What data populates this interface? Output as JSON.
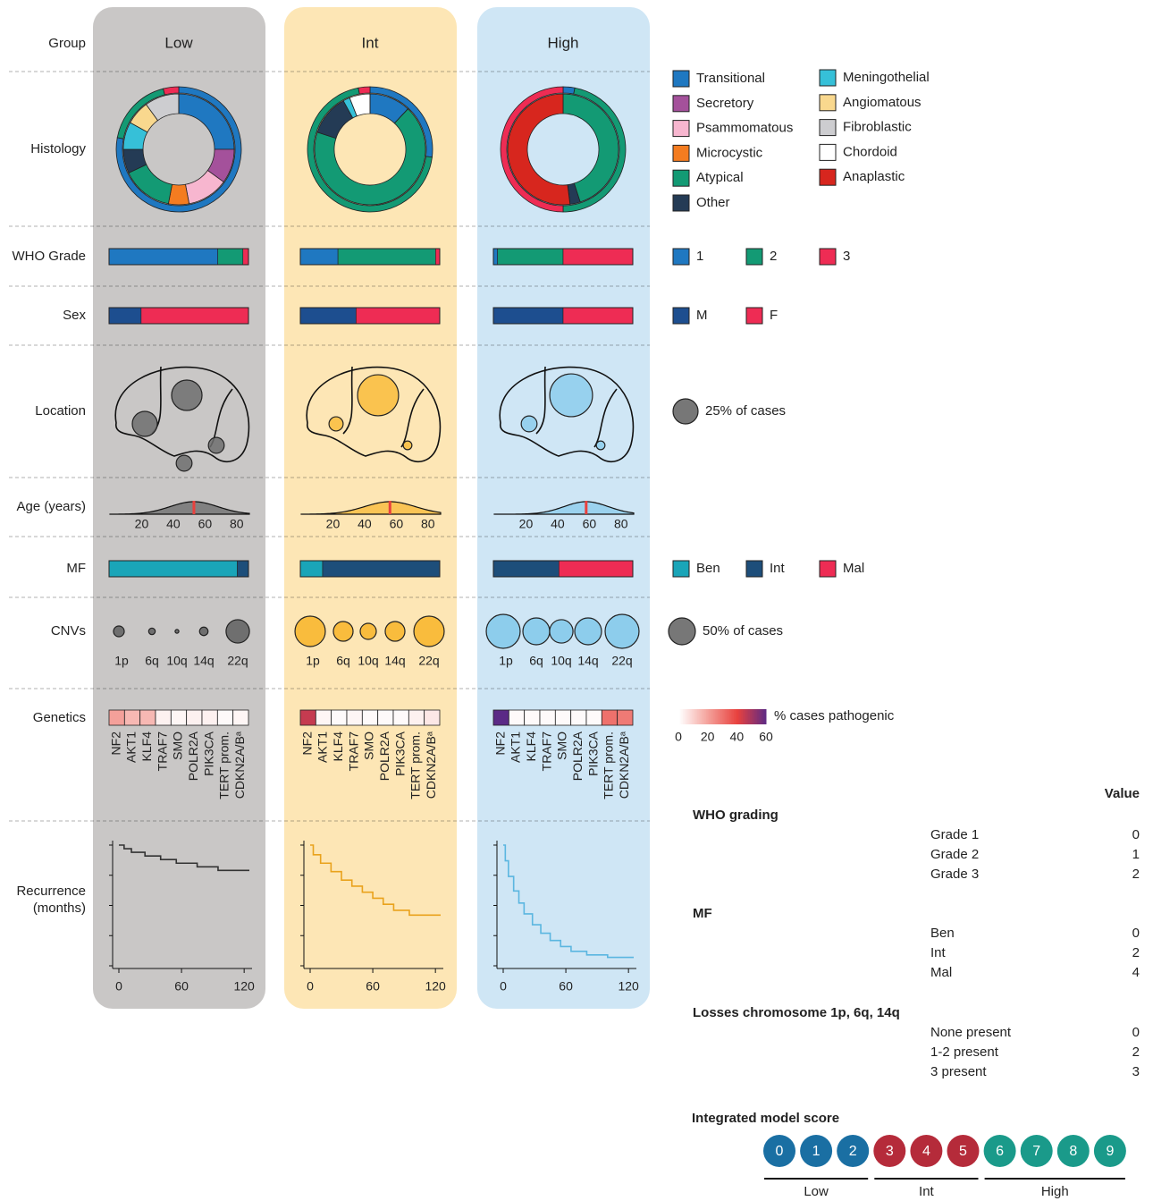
{
  "row_labels": [
    [
      "Group"
    ],
    [
      "Histology"
    ],
    [
      "WHO Grade"
    ],
    [
      "Sex"
    ],
    [
      "Location"
    ],
    [
      "Age (years)"
    ],
    [
      "MF"
    ],
    [
      "CNVs"
    ],
    [
      "Genetics"
    ],
    [
      "Recurrence",
      "(months)"
    ]
  ],
  "histology_types": [
    {
      "name": "Transitional",
      "color": "#1f78c1"
    },
    {
      "name": "Secretory",
      "color": "#a4519b"
    },
    {
      "name": "Psammomatous",
      "color": "#f7b6cf"
    },
    {
      "name": "Microcystic",
      "color": "#f47c20"
    },
    {
      "name": "Atypical",
      "color": "#139a74"
    },
    {
      "name": "Other",
      "color": "#243b55"
    },
    {
      "name": "Meningothelial",
      "color": "#36c0d8"
    },
    {
      "name": "Angiomatous",
      "color": "#f9d88e"
    },
    {
      "name": "Fibroblastic",
      "color": "#cdcdd0"
    },
    {
      "name": "Chordoid",
      "color": "#ffffff"
    },
    {
      "name": "Anaplastic",
      "color": "#d7261e"
    }
  ],
  "who_grades": [
    {
      "name": "1",
      "color": "#1f78c1"
    },
    {
      "name": "2",
      "color": "#139a74"
    },
    {
      "name": "3",
      "color": "#ee2c54"
    }
  ],
  "sex": [
    {
      "name": "M",
      "color": "#1d4e8f"
    },
    {
      "name": "F",
      "color": "#ee2c54"
    }
  ],
  "mf_classes": [
    {
      "name": "Ben",
      "color": "#1aa5b8"
    },
    {
      "name": "Int",
      "color": "#1d4e7a"
    },
    {
      "name": "Mal",
      "color": "#ee2c54"
    }
  ],
  "location_legend": {
    "label": "25% of cases",
    "value": 25
  },
  "cnv_legend": {
    "label": "50% of cases",
    "value": 50
  },
  "cnv_names": [
    "1p",
    "6q",
    "10q",
    "14q",
    "22q"
  ],
  "genes": [
    "NF2",
    "AKT1",
    "KLF4",
    "TRAF7",
    "SMO",
    "POLR2A",
    "PIK3CA",
    "TERT prom.",
    "CDKN2A/Bᵃ"
  ],
  "colorbar": {
    "label": "% cases pathogenic",
    "ticks": [
      0,
      20,
      40,
      60
    ],
    "colors": [
      "#ffffff",
      "#f4a09a",
      "#e8413e",
      "#5b2a86"
    ]
  },
  "age_xlim": [
    0,
    88
  ],
  "age_ticks": [
    20,
    40,
    60,
    80
  ],
  "recurrence_xlim": [
    0,
    125
  ],
  "recurrence_xticks": [
    0,
    60,
    120
  ],
  "recurrence_ylim": [
    0,
    1
  ],
  "recurrence_yticks": [
    0,
    0.25,
    0.5,
    0.75,
    1
  ],
  "groups": [
    {
      "name": "Low",
      "panel_color": "#c9c7c6",
      "color": "#6f6f6f",
      "line_color": "#333333",
      "histology": [
        25,
        10,
        12,
        6,
        15,
        7,
        8,
        7,
        10,
        0,
        0
      ],
      "who": [
        78,
        18,
        4
      ],
      "sex": [
        23,
        77
      ],
      "location": [
        37,
        25,
        10,
        10
      ],
      "age_median": 53,
      "age_sd": 15,
      "mf": [
        92,
        8,
        0
      ],
      "cnvs": [
        8,
        3,
        1,
        5,
        38
      ],
      "genetics": [
        20,
        15,
        15,
        3,
        2,
        3,
        3,
        1,
        2
      ],
      "recurrence": {
        "x": [
          0,
          5,
          5,
          12,
          12,
          25,
          25,
          40,
          40,
          55,
          55,
          75,
          75,
          95,
          95,
          125
        ],
        "y": [
          1,
          1,
          0.97,
          0.97,
          0.94,
          0.94,
          0.91,
          0.91,
          0.88,
          0.88,
          0.85,
          0.85,
          0.82,
          0.82,
          0.79,
          0.79
        ]
      }
    },
    {
      "name": "Int",
      "panel_color": "#fde6b5",
      "color": "#f9bc3d",
      "line_color": "#e9a21c",
      "histology": [
        12,
        0,
        0,
        0,
        68,
        12,
        2,
        0,
        0,
        6,
        0
      ],
      "who": [
        27,
        70,
        3
      ],
      "sex": [
        40,
        60
      ],
      "location": [
        67,
        8,
        3,
        0
      ],
      "age_median": 56,
      "age_sd": 16,
      "mf": [
        16,
        84,
        0
      ],
      "cnvs": [
        64,
        27,
        18,
        27,
        64
      ],
      "genetics": [
        45,
        2,
        1,
        2,
        1,
        1,
        1,
        3,
        5
      ],
      "recurrence": {
        "x": [
          0,
          3,
          3,
          10,
          10,
          20,
          20,
          30,
          30,
          40,
          40,
          50,
          50,
          60,
          60,
          70,
          70,
          80,
          80,
          95,
          95,
          125
        ],
        "y": [
          1,
          1,
          0.92,
          0.92,
          0.85,
          0.85,
          0.78,
          0.78,
          0.71,
          0.71,
          0.66,
          0.66,
          0.61,
          0.61,
          0.56,
          0.56,
          0.51,
          0.51,
          0.46,
          0.46,
          0.42,
          0.42
        ]
      }
    },
    {
      "name": "High",
      "panel_color": "#cfe6f5",
      "color": "#8dcdec",
      "line_color": "#5bb6e0",
      "histology": [
        0,
        0,
        0,
        0,
        45,
        3,
        0,
        0,
        0,
        0,
        52
      ],
      "who": [
        3,
        47,
        50
      ],
      "sex": [
        50,
        50
      ],
      "location": [
        73,
        10,
        3,
        0
      ],
      "age_median": 58,
      "age_sd": 14,
      "mf": [
        0,
        47,
        53
      ],
      "cnvs": [
        80,
        50,
        38,
        50,
        80
      ],
      "genetics": [
        60,
        1,
        1,
        1,
        1,
        1,
        1,
        30,
        28
      ],
      "recurrence": {
        "x": [
          0,
          2,
          2,
          5,
          5,
          10,
          10,
          15,
          15,
          20,
          20,
          28,
          28,
          36,
          36,
          45,
          45,
          55,
          55,
          65,
          65,
          80,
          80,
          100,
          100,
          125
        ],
        "y": [
          1,
          1,
          0.87,
          0.87,
          0.74,
          0.74,
          0.62,
          0.62,
          0.52,
          0.52,
          0.43,
          0.43,
          0.34,
          0.34,
          0.27,
          0.27,
          0.21,
          0.21,
          0.16,
          0.16,
          0.12,
          0.12,
          0.09,
          0.09,
          0.07,
          0.07
        ]
      }
    }
  ],
  "table": {
    "value_header": "Value",
    "sections": [
      {
        "title": "WHO grading",
        "rows": [
          {
            "label": "Grade 1",
            "value": 0
          },
          {
            "label": "Grade 2",
            "value": 1
          },
          {
            "label": "Grade 3",
            "value": 2
          }
        ]
      },
      {
        "title": "MF",
        "rows": [
          {
            "label": "Ben",
            "value": 0
          },
          {
            "label": "Int",
            "value": 2
          },
          {
            "label": "Mal",
            "value": 4
          }
        ]
      },
      {
        "title": "Losses chromosome 1p, 6q, 14q",
        "rows": [
          {
            "label": "None present",
            "value": 0
          },
          {
            "label": "1-2 present",
            "value": 2
          },
          {
            "label": "3 present",
            "value": 3
          }
        ]
      }
    ]
  },
  "score": {
    "title": "Integrated model score",
    "groups": [
      {
        "name": "Low",
        "color": "#1a6fa3",
        "scores": [
          0,
          1,
          2
        ]
      },
      {
        "name": "Int",
        "color": "#b52b3a",
        "scores": [
          3,
          4,
          5
        ]
      },
      {
        "name": "High",
        "color": "#1a9a8a",
        "scores": [
          6,
          7,
          8,
          9
        ]
      }
    ]
  }
}
